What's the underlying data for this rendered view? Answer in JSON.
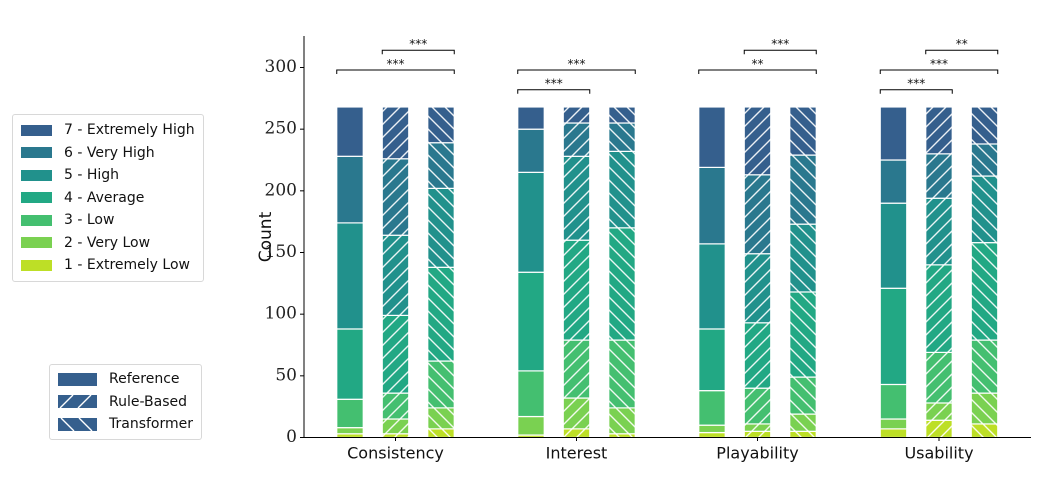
{
  "chart_data": {
    "type": "bar",
    "stacked": true,
    "title": "",
    "xlabel": "",
    "ylabel": "Count",
    "ylim": [
      0,
      325
    ],
    "yticks": [
      0,
      50,
      100,
      150,
      200,
      250,
      300
    ],
    "grid": false,
    "categories": [
      "Consistency",
      "Interest",
      "Playability",
      "Usability"
    ],
    "methods": [
      {
        "name": "Reference",
        "hatch": "none"
      },
      {
        "name": "Rule-Based",
        "hatch": "forward-diagonal"
      },
      {
        "name": "Transformer",
        "hatch": "back-diagonal"
      }
    ],
    "levels": [
      {
        "name": "1 - Extremely Low",
        "color": "#bddf26"
      },
      {
        "name": "2 - Very Low",
        "color": "#7ad151"
      },
      {
        "name": "3 - Low",
        "color": "#44bf70"
      },
      {
        "name": "4 - Average",
        "color": "#22a884"
      },
      {
        "name": "5 - High",
        "color": "#21918c"
      },
      {
        "name": "6 - Very High",
        "color": "#2a788e"
      },
      {
        "name": "7 - Extremely High",
        "color": "#355f8d"
      }
    ],
    "series_note": "counts[category][method] = counts per level from 1 (Extremely Low) to 7 (Extremely High)",
    "counts": {
      "Consistency": {
        "Reference": [
          3,
          5,
          23,
          57,
          86,
          54,
          40
        ],
        "Rule-Based": [
          3,
          12,
          21,
          63,
          65,
          62,
          42
        ],
        "Transformer": [
          7,
          17,
          38,
          76,
          64,
          37,
          29
        ]
      },
      "Interest": {
        "Reference": [
          2,
          15,
          37,
          80,
          81,
          35,
          18
        ],
        "Rule-Based": [
          7,
          25,
          47,
          81,
          68,
          27,
          13
        ],
        "Transformer": [
          3,
          21,
          55,
          91,
          62,
          23,
          13
        ]
      },
      "Playability": {
        "Reference": [
          4,
          6,
          28,
          50,
          69,
          62,
          49
        ],
        "Rule-Based": [
          5,
          6,
          29,
          53,
          56,
          64,
          55
        ],
        "Transformer": [
          5,
          14,
          30,
          69,
          55,
          56,
          39
        ]
      },
      "Usability": {
        "Reference": [
          7,
          8,
          28,
          78,
          69,
          35,
          43
        ],
        "Rule-Based": [
          14,
          14,
          41,
          71,
          54,
          36,
          38
        ],
        "Transformer": [
          11,
          25,
          43,
          79,
          54,
          26,
          30
        ]
      }
    },
    "significance": [
      {
        "category": "Consistency",
        "from": "Reference",
        "to": "Transformer",
        "label": "***",
        "level": 2
      },
      {
        "category": "Consistency",
        "from": "Rule-Based",
        "to": "Transformer",
        "label": "***",
        "level": 3
      },
      {
        "category": "Interest",
        "from": "Reference",
        "to": "Rule-Based",
        "label": "***",
        "level": 1
      },
      {
        "category": "Interest",
        "from": "Reference",
        "to": "Transformer",
        "label": "***",
        "level": 2
      },
      {
        "category": "Playability",
        "from": "Reference",
        "to": "Transformer",
        "label": "**",
        "level": 2
      },
      {
        "category": "Playability",
        "from": "Rule-Based",
        "to": "Transformer",
        "label": "***",
        "level": 3
      },
      {
        "category": "Usability",
        "from": "Reference",
        "to": "Rule-Based",
        "label": "***",
        "level": 1
      },
      {
        "category": "Usability",
        "from": "Reference",
        "to": "Transformer",
        "label": "***",
        "level": 2
      },
      {
        "category": "Usability",
        "from": "Rule-Based",
        "to": "Transformer",
        "label": "**",
        "level": 3
      }
    ],
    "legend": {
      "levels_placement": "left-middle",
      "methods_placement": "left-bottom"
    }
  },
  "legend_levels": [
    {
      "label": "7 - Extremely High",
      "color": "#355f8d"
    },
    {
      "label": "6 - Very High",
      "color": "#2a788e"
    },
    {
      "label": "5 - High",
      "color": "#21918c"
    },
    {
      "label": "4 - Average",
      "color": "#22a884"
    },
    {
      "label": "3 - Low",
      "color": "#44bf70"
    },
    {
      "label": "2 - Very Low",
      "color": "#7ad151"
    },
    {
      "label": "1 - Extremely Low",
      "color": "#bddf26"
    }
  ],
  "legend_methods": [
    {
      "label": "Reference",
      "hatch": "none"
    },
    {
      "label": "Rule-Based",
      "hatch": "forward-diagonal"
    },
    {
      "label": "Transformer",
      "hatch": "back-diagonal"
    }
  ]
}
